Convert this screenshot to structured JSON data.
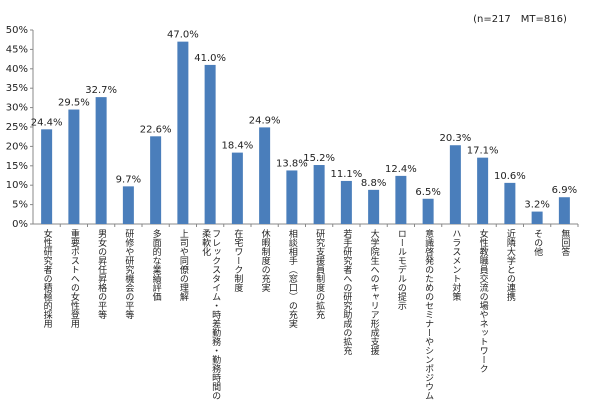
{
  "chart_data": {
    "type": "bar",
    "note": "(n=217　MT=816)",
    "categories": [
      "女性研究者の積極的採用",
      "重要ポストへの女性登用",
      "男女の昇任昇格の平等",
      "研修や研究機会の平等",
      "多面的な業績評価",
      "上司や同僚の理解",
      "フレックスタイム・時差勤務・勤務時間の柔軟化",
      "在宅ワーク制度",
      "休暇制度の充実",
      "相談相手（窓口）の充実",
      "研究支援員制度の拡充",
      "若手研究者への研究助成の拡充",
      "大学院生へのキャリア形成支援",
      "ロールモデルの提示",
      "意識啓発のためのセミナーやシンポジウム",
      "ハラスメント対策",
      "女性教職員交流の場やネットワーク",
      "近隣大学との連携",
      "その他",
      "無回答"
    ],
    "values": [
      24.4,
      29.5,
      32.7,
      9.7,
      22.6,
      47.0,
      41.0,
      18.4,
      24.9,
      13.8,
      15.2,
      11.1,
      8.8,
      12.4,
      6.5,
      20.3,
      17.1,
      10.6,
      3.2,
      6.9
    ],
    "value_labels": [
      "24.4%",
      "29.5%",
      "32.7%",
      "9.7%",
      "22.6%",
      "47.0%",
      "41.0%",
      "18.4%",
      "24.9%",
      "13.8%",
      "15.2%",
      "11.1%",
      "8.8%",
      "12.4%",
      "6.5%",
      "20.3%",
      "17.1%",
      "10.6%",
      "3.2%",
      "6.9%"
    ],
    "color": "#4a7ebb",
    "ylim": [
      0,
      50
    ],
    "yticks": [
      {
        "value": 0,
        "label": "0%"
      },
      {
        "value": 5,
        "label": "5%"
      },
      {
        "value": 10,
        "label": "10%"
      },
      {
        "value": 15,
        "label": "15%"
      },
      {
        "value": 20,
        "label": "20%"
      },
      {
        "value": 25,
        "label": "25%"
      },
      {
        "value": 30,
        "label": "30%"
      },
      {
        "value": 35,
        "label": "35%"
      },
      {
        "value": 40,
        "label": "40%"
      },
      {
        "value": 45,
        "label": "45%"
      },
      {
        "value": 50,
        "label": "50%"
      }
    ],
    "grid": false
  }
}
